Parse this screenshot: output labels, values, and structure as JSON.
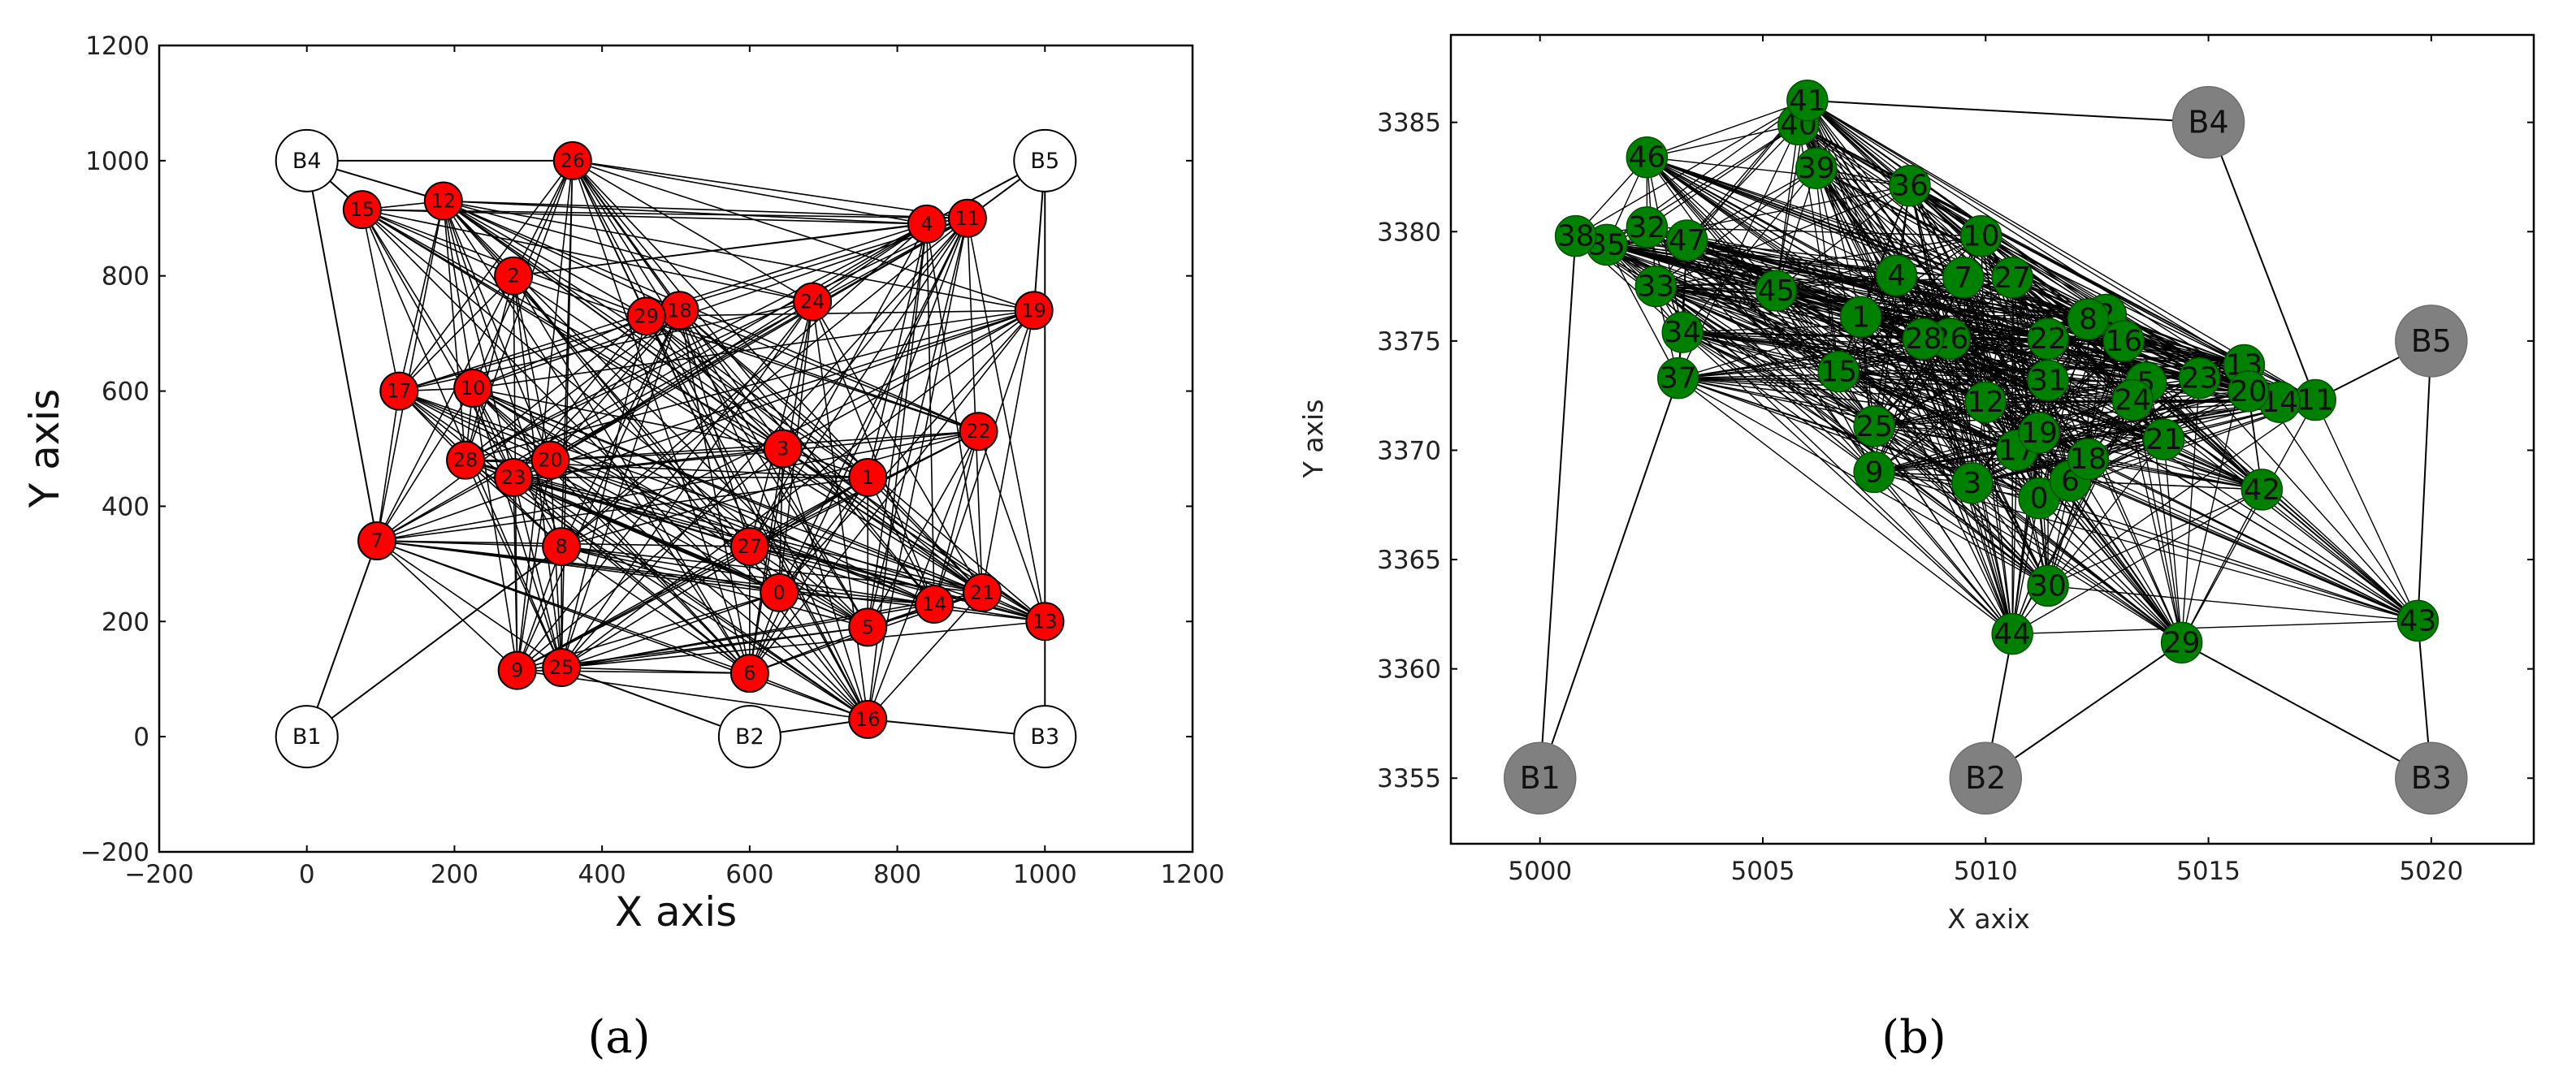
{
  "chart_data": [
    {
      "type": "scatter",
      "subtype": "network-graph",
      "title": "",
      "panel_label": "(a)",
      "xlabel": "X axis",
      "ylabel": "Y axis",
      "xlim": [
        -200,
        1200
      ],
      "ylim": [
        -200,
        1200
      ],
      "xticks": [
        "−200",
        "0",
        "200",
        "400",
        "600",
        "800",
        "1000",
        "1200"
      ],
      "yticks": [
        "−200",
        "0",
        "200",
        "400",
        "600",
        "800",
        "1000",
        "1200"
      ],
      "node_color": "#ff0000",
      "base_color": "#ffffff",
      "grid": false,
      "nodes": [
        {
          "id": "0",
          "x": 640,
          "y": 250
        },
        {
          "id": "1",
          "x": 760,
          "y": 450
        },
        {
          "id": "2",
          "x": 280,
          "y": 800
        },
        {
          "id": "3",
          "x": 645,
          "y": 500
        },
        {
          "id": "4",
          "x": 840,
          "y": 890
        },
        {
          "id": "5",
          "x": 760,
          "y": 190
        },
        {
          "id": "6",
          "x": 600,
          "y": 110
        },
        {
          "id": "7",
          "x": 95,
          "y": 340
        },
        {
          "id": "8",
          "x": 345,
          "y": 330
        },
        {
          "id": "9",
          "x": 285,
          "y": 115
        },
        {
          "id": "10",
          "x": 225,
          "y": 605
        },
        {
          "id": "11",
          "x": 895,
          "y": 900
        },
        {
          "id": "12",
          "x": 185,
          "y": 930
        },
        {
          "id": "13",
          "x": 1000,
          "y": 200
        },
        {
          "id": "14",
          "x": 850,
          "y": 230
        },
        {
          "id": "15",
          "x": 75,
          "y": 915
        },
        {
          "id": "16",
          "x": 760,
          "y": 30
        },
        {
          "id": "17",
          "x": 125,
          "y": 600
        },
        {
          "id": "18",
          "x": 505,
          "y": 740
        },
        {
          "id": "19",
          "x": 985,
          "y": 740
        },
        {
          "id": "20",
          "x": 330,
          "y": 480
        },
        {
          "id": "21",
          "x": 915,
          "y": 250
        },
        {
          "id": "22",
          "x": 910,
          "y": 530
        },
        {
          "id": "23",
          "x": 280,
          "y": 450
        },
        {
          "id": "24",
          "x": 685,
          "y": 755
        },
        {
          "id": "25",
          "x": 345,
          "y": 120
        },
        {
          "id": "26",
          "x": 360,
          "y": 1000
        },
        {
          "id": "27",
          "x": 600,
          "y": 330
        },
        {
          "id": "28",
          "x": 215,
          "y": 480
        },
        {
          "id": "29",
          "x": 460,
          "y": 730
        }
      ],
      "bases": [
        {
          "id": "B1",
          "x": 0,
          "y": 0
        },
        {
          "id": "B2",
          "x": 600,
          "y": 0
        },
        {
          "id": "B3",
          "x": 1000,
          "y": 0
        },
        {
          "id": "B4",
          "x": 0,
          "y": 1000
        },
        {
          "id": "B5",
          "x": 1000,
          "y": 1000
        }
      ],
      "base_links": [
        [
          "B1",
          "7"
        ],
        [
          "B1",
          "8"
        ],
        [
          "B2",
          "25"
        ],
        [
          "B2",
          "16"
        ],
        [
          "B3",
          "13"
        ],
        [
          "B3",
          "16"
        ],
        [
          "B4",
          "15"
        ],
        [
          "B4",
          "12"
        ],
        [
          "B4",
          "26"
        ],
        [
          "B4",
          "7"
        ],
        [
          "B5",
          "4"
        ],
        [
          "B5",
          "11"
        ],
        [
          "B5",
          "19"
        ],
        [
          "B5",
          "13"
        ]
      ]
    },
    {
      "type": "scatter",
      "subtype": "network-graph",
      "title": "",
      "panel_label": "(b)",
      "xlabel": "X axix",
      "ylabel": "Y axis",
      "xlim": [
        4998,
        5022.3
      ],
      "ylim": [
        3352,
        3389
      ],
      "xticks": [
        5000,
        5005,
        5010,
        5015,
        5020
      ],
      "yticks": [
        3355,
        3360,
        3365,
        3370,
        3375,
        3380,
        3385
      ],
      "node_color": "#008000",
      "base_color": "#808080",
      "grid": false,
      "nodes": [
        {
          "id": "0",
          "x": 5011.2,
          "y": 3367.8
        },
        {
          "id": "1",
          "x": 5007.2,
          "y": 3376.1
        },
        {
          "id": "2",
          "x": 5012.7,
          "y": 3376.2
        },
        {
          "id": "3",
          "x": 5009.7,
          "y": 3368.5
        },
        {
          "id": "4",
          "x": 5008.0,
          "y": 3378.0
        },
        {
          "id": "5",
          "x": 5013.6,
          "y": 3373.1
        },
        {
          "id": "6",
          "x": 5011.9,
          "y": 3368.6
        },
        {
          "id": "7",
          "x": 5009.5,
          "y": 3377.9
        },
        {
          "id": "8",
          "x": 5012.3,
          "y": 3376.0
        },
        {
          "id": "9",
          "x": 5007.5,
          "y": 3369.0
        },
        {
          "id": "10",
          "x": 5009.9,
          "y": 3379.8
        },
        {
          "id": "11",
          "x": 5017.4,
          "y": 3372.3
        },
        {
          "id": "12",
          "x": 5010.0,
          "y": 3372.2
        },
        {
          "id": "13",
          "x": 5015.8,
          "y": 3373.9
        },
        {
          "id": "14",
          "x": 5016.6,
          "y": 3372.2
        },
        {
          "id": "15",
          "x": 5006.7,
          "y": 3373.6
        },
        {
          "id": "16",
          "x": 5013.1,
          "y": 3375.0
        },
        {
          "id": "17",
          "x": 5010.7,
          "y": 3370.0
        },
        {
          "id": "18",
          "x": 5012.3,
          "y": 3369.6
        },
        {
          "id": "19",
          "x": 5011.2,
          "y": 3370.8
        },
        {
          "id": "20",
          "x": 5015.9,
          "y": 3372.7
        },
        {
          "id": "21",
          "x": 5014.0,
          "y": 3370.5
        },
        {
          "id": "22",
          "x": 5011.4,
          "y": 3375.1
        },
        {
          "id": "23",
          "x": 5014.8,
          "y": 3373.3
        },
        {
          "id": "24",
          "x": 5013.3,
          "y": 3372.3
        },
        {
          "id": "25",
          "x": 5007.5,
          "y": 3371.1
        },
        {
          "id": "26",
          "x": 5009.2,
          "y": 3375.1
        },
        {
          "id": "27",
          "x": 5010.6,
          "y": 3377.9
        },
        {
          "id": "28",
          "x": 5008.6,
          "y": 3375.1
        },
        {
          "id": "29",
          "x": 5014.4,
          "y": 3361.2
        },
        {
          "id": "30",
          "x": 5011.4,
          "y": 3363.8
        },
        {
          "id": "31",
          "x": 5011.4,
          "y": 3373.2
        },
        {
          "id": "32",
          "x": 5002.4,
          "y": 3380.2
        },
        {
          "id": "33",
          "x": 5002.6,
          "y": 3377.5
        },
        {
          "id": "34",
          "x": 5003.2,
          "y": 3375.4
        },
        {
          "id": "35",
          "x": 5001.5,
          "y": 3379.4
        },
        {
          "id": "36",
          "x": 5008.3,
          "y": 3382.1
        },
        {
          "id": "37",
          "x": 5003.1,
          "y": 3373.3
        },
        {
          "id": "38",
          "x": 5000.8,
          "y": 3379.8
        },
        {
          "id": "39",
          "x": 5006.2,
          "y": 3382.9
        },
        {
          "id": "40",
          "x": 5005.8,
          "y": 3384.9
        },
        {
          "id": "41",
          "x": 5006.0,
          "y": 3386.0
        },
        {
          "id": "42",
          "x": 5016.2,
          "y": 3368.2
        },
        {
          "id": "43",
          "x": 5019.7,
          "y": 3362.2
        },
        {
          "id": "44",
          "x": 5010.6,
          "y": 3361.6
        },
        {
          "id": "45",
          "x": 5005.3,
          "y": 3377.3
        },
        {
          "id": "46",
          "x": 5002.4,
          "y": 3383.4
        },
        {
          "id": "47",
          "x": 5003.3,
          "y": 3379.6
        }
      ],
      "bases": [
        {
          "id": "B1",
          "x": 5000,
          "y": 3355
        },
        {
          "id": "B2",
          "x": 5010,
          "y": 3355
        },
        {
          "id": "B3",
          "x": 5020,
          "y": 3355
        },
        {
          "id": "B4",
          "x": 5015,
          "y": 3385
        },
        {
          "id": "B5",
          "x": 5020,
          "y": 3375
        }
      ],
      "base_links": [
        [
          "B1",
          "38"
        ],
        [
          "B1",
          "37"
        ],
        [
          "B2",
          "44"
        ],
        [
          "B2",
          "29"
        ],
        [
          "B3",
          "29"
        ],
        [
          "B3",
          "43"
        ],
        [
          "B4",
          "41"
        ],
        [
          "B4",
          "11"
        ],
        [
          "B5",
          "11"
        ],
        [
          "B5",
          "43"
        ]
      ]
    }
  ]
}
